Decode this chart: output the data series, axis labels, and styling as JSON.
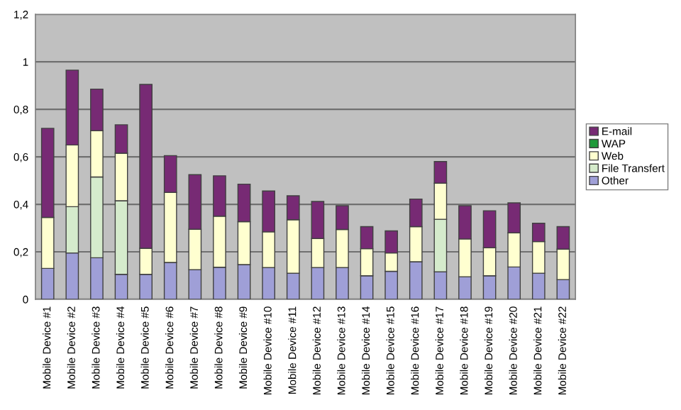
{
  "chart_data": {
    "type": "bar",
    "stacked": true,
    "legend": "right",
    "grid": "y",
    "categories": [
      "Mobile Device #1",
      "Mobile Device #2",
      "Mobile Device #3",
      "Mobile Device #4",
      "Mobile Device #5",
      "Mobile Device #6",
      "Mobile Device #7",
      "Mobile Device #8",
      "Mobile Device #9",
      "Mobile Device #10",
      "Mobile Device #11",
      "Mobile Device #12",
      "Mobile Device #13",
      "Mobile Device #14",
      "Mobile Device #15",
      "Mobile Device #16",
      "Mobile Device #17",
      "Mobile Device #18",
      "Mobile Device #19",
      "Mobile Device #20",
      "Mobile Device #21",
      "Mobile Device #22"
    ],
    "series": [
      {
        "name": "Other",
        "color": "#9f9fd7",
        "values": [
          0.13,
          0.195,
          0.175,
          0.105,
          0.105,
          0.155,
          0.125,
          0.135,
          0.146,
          0.134,
          0.11,
          0.134,
          0.134,
          0.099,
          0.118,
          0.158,
          0.116,
          0.095,
          0.099,
          0.136,
          0.11,
          0.083
        ]
      },
      {
        "name": "File Transfert",
        "color": "#d5ebcc",
        "values": [
          0,
          0.195,
          0.34,
          0.31,
          0,
          0,
          0,
          0,
          0,
          0,
          0,
          0,
          0,
          0,
          0,
          0,
          0.221,
          0,
          0,
          0,
          0,
          0
        ]
      },
      {
        "name": "Web",
        "color": "#ffffd0",
        "values": [
          0.215,
          0.26,
          0.195,
          0.2,
          0.11,
          0.295,
          0.17,
          0.215,
          0.181,
          0.15,
          0.225,
          0.122,
          0.16,
          0.114,
          0.077,
          0.148,
          0.152,
          0.159,
          0.118,
          0.144,
          0.133,
          0.128
        ]
      },
      {
        "name": "WAP",
        "color": "#1f9a3a",
        "values": [
          0,
          0,
          0,
          0,
          0,
          0,
          0,
          0,
          0,
          0,
          0,
          0,
          0,
          0,
          0,
          0,
          0,
          0,
          0,
          0,
          0,
          0
        ]
      },
      {
        "name": "E-mail",
        "color": "#772a74",
        "values": [
          0.375,
          0.315,
          0.175,
          0.12,
          0.69,
          0.155,
          0.23,
          0.17,
          0.158,
          0.172,
          0.101,
          0.156,
          0.1,
          0.093,
          0.093,
          0.116,
          0.091,
          0.14,
          0.156,
          0.126,
          0.077,
          0.095
        ]
      }
    ],
    "ylim": [
      0,
      1.2
    ],
    "yticks": [
      0,
      {
        "value": 0.2,
        "label": "0,2"
      },
      {
        "value": 0.4,
        "label": "0,4"
      },
      {
        "value": 0.6,
        "label": "0,6"
      },
      {
        "value": 0.8,
        "label": "0,8"
      },
      1,
      {
        "value": 1.2,
        "label": "1,2"
      }
    ]
  }
}
